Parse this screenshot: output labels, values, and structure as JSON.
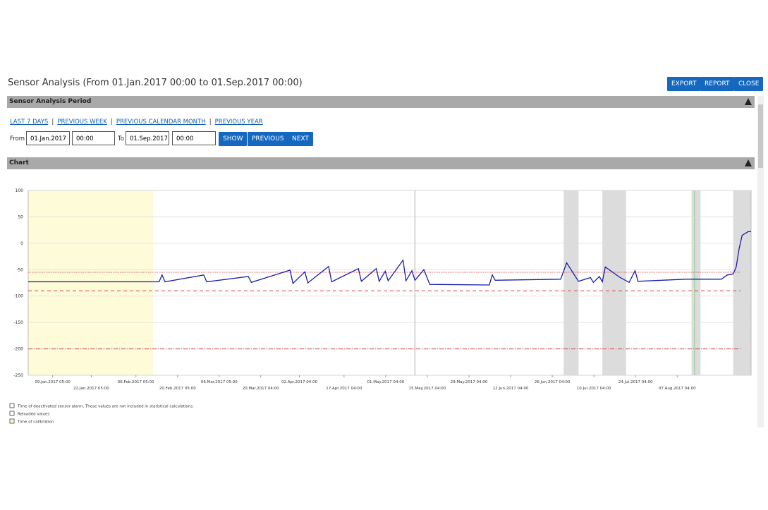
{
  "ui": {
    "title": "Sensor Analysis (From 01.Jan.2017 00:00 to 01.Sep.2017 00:00)",
    "buttons": [
      "EXPORT",
      "REPORT",
      "CLOSE"
    ],
    "period_section": "Sensor Analysis Period",
    "period_links": [
      "LAST 7 DAYS",
      "PREVIOUS WEEK",
      "PREVIOUS CALENDAR MONTH",
      "PREVIOUS YEAR"
    ],
    "form": {
      "from_label": "From",
      "from_date": "01.Jan.2017",
      "from_time": "00:00",
      "to_label": "To",
      "to_date": "01.Sep.2017",
      "to_time": "00:00",
      "buttons": [
        "SHOW",
        "PREVIOUS",
        "NEXT"
      ]
    },
    "chart_section": "Chart"
  },
  "chart_data": {
    "type": "line",
    "x": [
      "2017-01-01",
      "2017-02-14",
      "2017-02-15",
      "2017-02-16",
      "2017-03-01",
      "2017-03-02",
      "2017-03-16",
      "2017-03-17",
      "2017-03-30",
      "2017-03-31",
      "2017-04-04",
      "2017-04-05",
      "2017-04-12",
      "2017-04-13",
      "2017-04-22",
      "2017-04-23",
      "2017-04-28",
      "2017-04-29",
      "2017-05-01",
      "2017-05-02",
      "2017-05-07",
      "2017-05-08",
      "2017-05-10",
      "2017-05-11",
      "2017-05-14",
      "2017-05-16",
      "2017-06-05",
      "2017-06-06",
      "2017-06-07",
      "2017-06-29",
      "2017-07-01",
      "2017-07-05",
      "2017-07-09",
      "2017-07-10",
      "2017-07-12",
      "2017-07-13",
      "2017-07-14",
      "2017-07-19",
      "2017-07-22",
      "2017-07-24",
      "2017-07-25",
      "2017-08-10",
      "2017-08-22",
      "2017-08-24",
      "2017-08-26",
      "2017-08-27",
      "2017-08-28",
      "2017-08-29",
      "2017-08-31",
      "2017-09-01"
    ],
    "series": [
      {
        "color": "#1c1ca8",
        "values": [
          -73,
          -73,
          -60,
          -73,
          -60,
          -73,
          -63,
          -74,
          -51,
          -76,
          -54,
          -75,
          -44,
          -73,
          -48,
          -72,
          -48,
          -72,
          -53,
          -71,
          -32,
          -71,
          -52,
          -70,
          -50,
          -78,
          -79,
          -60,
          -70,
          -68,
          -37,
          -72,
          -65,
          -74,
          -63,
          -73,
          -45,
          -65,
          -74,
          -52,
          -72,
          -68,
          -68,
          -60,
          -58,
          -45,
          -10,
          15,
          22,
          22
        ]
      }
    ],
    "xlim": [
      "2017-01-01",
      "2017-09-01"
    ],
    "xticks": [
      {
        "value": "2017-01-09T05:00",
        "label": "09.Jan.2017 05:00"
      },
      {
        "value": "2017-01-22T05:00",
        "label": "22.Jan.2017 05:00"
      },
      {
        "value": "2017-02-06T05:00",
        "label": "06.Feb.2017 05:00"
      },
      {
        "value": "2017-02-20T05:00",
        "label": "20.Feb.2017 05:00"
      },
      {
        "value": "2017-03-06T05:00",
        "label": "06.Mar.2017 05:00"
      },
      {
        "value": "2017-03-20T04:00",
        "label": "20.Mar.2017 04:00"
      },
      {
        "value": "2017-04-02T04:00",
        "label": "02.Apr.2017 04:00"
      },
      {
        "value": "2017-04-17T04:00",
        "label": "17.Apr.2017 04:00"
      },
      {
        "value": "2017-05-01T04:00",
        "label": "01.May.2017 04:00"
      },
      {
        "value": "2017-05-15T04:00",
        "label": "15.May.2017 04:00"
      },
      {
        "value": "2017-05-29T04:00",
        "label": "29.May.2017 04:00"
      },
      {
        "value": "2017-06-12T04:00",
        "label": "12.Jun.2017 04:00"
      },
      {
        "value": "2017-06-26T04:00",
        "label": "26.Jun.2017 04:00"
      },
      {
        "value": "2017-07-10T04:00",
        "label": "10.Jul.2017 04:00"
      },
      {
        "value": "2017-07-24T04:00",
        "label": "24.Jul.2017 04:00"
      },
      {
        "value": "2017-08-07T04:00",
        "label": "07.Aug.2017 04:00"
      }
    ],
    "ylim": [
      -250,
      100
    ],
    "yticks": [
      100,
      50,
      0,
      -50,
      -100,
      -150,
      -200,
      -250
    ],
    "grid": true,
    "bands": [
      {
        "x": [
          "2017-01-01",
          "2017-02-12"
        ],
        "color": "#fdfbd8"
      },
      {
        "x": [
          "2017-06-30",
          "2017-07-05"
        ],
        "color": "#dcdcdc"
      },
      {
        "x": [
          "2017-07-13",
          "2017-07-21"
        ],
        "color": "#dcdcdc"
      },
      {
        "x": [
          "2017-08-12",
          "2017-08-15"
        ],
        "color": "#dcdcdc"
      },
      {
        "x": [
          "2017-08-26",
          "2017-09-01"
        ],
        "color": "#dcdcdc"
      }
    ],
    "markers": [
      {
        "x": "2017-05-11",
        "color": "#c8c8c8"
      },
      {
        "x": "2017-08-13",
        "color": "#9fd89f"
      }
    ],
    "reference_lines": [
      {
        "value": -55,
        "color": "#e07070",
        "style": "dotted"
      },
      {
        "value": -90,
        "color": "#e04040",
        "style": "dashed"
      },
      {
        "value": -200,
        "color": "#d04040",
        "style": "dashdot"
      }
    ],
    "legend": [
      {
        "label": "Time of deactivated sensor alarm. These values are not included in statistical calculations.",
        "color": "#ffffff"
      },
      {
        "label": "Reloaded values",
        "color": "#ffffff"
      },
      {
        "label": "Time of calibration",
        "color": "#fdfbd8"
      }
    ]
  }
}
